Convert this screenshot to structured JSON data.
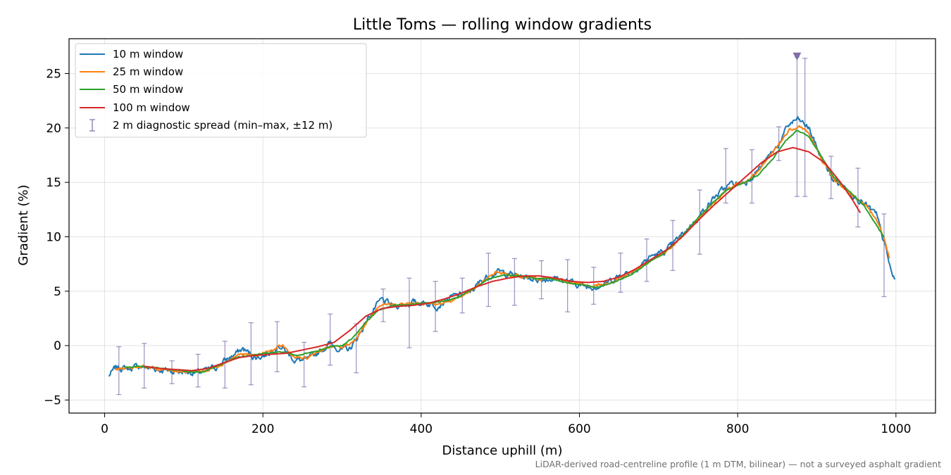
{
  "footnote": "LiDAR-derived road-centreline profile (1 m DTM, bilinear) — not a surveyed asphalt gradient",
  "chart_data": {
    "type": "line",
    "title": "Little Toms — rolling window gradients",
    "xlabel": "Distance uphill (m)",
    "ylabel": "Gradient (%)",
    "xlim": [
      -45,
      1050
    ],
    "ylim": [
      -6.2,
      28.2
    ],
    "xticks": [
      0,
      200,
      400,
      600,
      800,
      1000
    ],
    "yticks": [
      -5,
      0,
      5,
      10,
      15,
      20,
      25
    ],
    "grid": true,
    "legend_position": "top-left",
    "series": [
      {
        "name": "10 m window",
        "color": "#1f77b4",
        "x_start": 5,
        "x_end": 999,
        "points": [
          [
            5,
            -2.8
          ],
          [
            15,
            -2.0
          ],
          [
            30,
            -2.1
          ],
          [
            45,
            -1.9
          ],
          [
            60,
            -2.1
          ],
          [
            80,
            -2.3
          ],
          [
            100,
            -2.4
          ],
          [
            120,
            -2.5
          ],
          [
            140,
            -2.0
          ],
          [
            160,
            -1.0
          ],
          [
            175,
            -0.3
          ],
          [
            190,
            -1.1
          ],
          [
            205,
            -0.8
          ],
          [
            220,
            0.1
          ],
          [
            240,
            -1.3
          ],
          [
            255,
            -1.4
          ],
          [
            270,
            -0.6
          ],
          [
            285,
            0.2
          ],
          [
            300,
            -0.4
          ],
          [
            310,
            -0.3
          ],
          [
            320,
            0.8
          ],
          [
            335,
            2.8
          ],
          [
            350,
            4.2
          ],
          [
            365,
            3.6
          ],
          [
            385,
            3.9
          ],
          [
            400,
            4.0
          ],
          [
            420,
            3.7
          ],
          [
            440,
            4.5
          ],
          [
            460,
            4.8
          ],
          [
            480,
            6.2
          ],
          [
            495,
            6.8
          ],
          [
            510,
            6.6
          ],
          [
            530,
            6.3
          ],
          [
            550,
            6.1
          ],
          [
            570,
            6.2
          ],
          [
            590,
            5.8
          ],
          [
            610,
            5.4
          ],
          [
            630,
            5.6
          ],
          [
            650,
            6.4
          ],
          [
            670,
            7.0
          ],
          [
            690,
            8.2
          ],
          [
            710,
            8.7
          ],
          [
            730,
            10.2
          ],
          [
            750,
            11.8
          ],
          [
            770,
            13.6
          ],
          [
            790,
            14.8
          ],
          [
            810,
            15.0
          ],
          [
            830,
            16.5
          ],
          [
            850,
            18.3
          ],
          [
            865,
            20.3
          ],
          [
            875,
            20.8
          ],
          [
            890,
            20.0
          ],
          [
            905,
            17.3
          ],
          [
            920,
            15.3
          ],
          [
            940,
            14.3
          ],
          [
            960,
            13.0
          ],
          [
            975,
            12.0
          ],
          [
            985,
            9.5
          ],
          [
            995,
            6.5
          ],
          [
            999,
            6.0
          ]
        ]
      },
      {
        "name": "25 m window",
        "color": "#ff7f0e",
        "x_start": 13,
        "x_end": 992,
        "points": [
          [
            13,
            -2.2
          ],
          [
            30,
            -2.0
          ],
          [
            50,
            -1.9
          ],
          [
            70,
            -2.2
          ],
          [
            90,
            -2.3
          ],
          [
            110,
            -2.4
          ],
          [
            130,
            -2.3
          ],
          [
            150,
            -1.6
          ],
          [
            170,
            -0.8
          ],
          [
            190,
            -0.9
          ],
          [
            210,
            -0.5
          ],
          [
            225,
            0.0
          ],
          [
            240,
            -1.1
          ],
          [
            255,
            -1.2
          ],
          [
            270,
            -0.5
          ],
          [
            285,
            -0.1
          ],
          [
            300,
            -0.2
          ],
          [
            315,
            0.4
          ],
          [
            330,
            2.0
          ],
          [
            345,
            3.4
          ],
          [
            360,
            3.8
          ],
          [
            380,
            3.8
          ],
          [
            400,
            3.9
          ],
          [
            420,
            3.8
          ],
          [
            440,
            4.2
          ],
          [
            460,
            4.9
          ],
          [
            480,
            5.9
          ],
          [
            495,
            6.8
          ],
          [
            510,
            6.5
          ],
          [
            530,
            6.3
          ],
          [
            550,
            6.2
          ],
          [
            570,
            6.1
          ],
          [
            590,
            5.8
          ],
          [
            610,
            5.5
          ],
          [
            630,
            5.6
          ],
          [
            650,
            6.2
          ],
          [
            670,
            6.9
          ],
          [
            690,
            7.8
          ],
          [
            710,
            8.6
          ],
          [
            730,
            10.0
          ],
          [
            750,
            11.6
          ],
          [
            770,
            13.2
          ],
          [
            790,
            14.6
          ],
          [
            810,
            15.0
          ],
          [
            830,
            16.3
          ],
          [
            850,
            18.3
          ],
          [
            865,
            19.8
          ],
          [
            878,
            20.2
          ],
          [
            890,
            19.5
          ],
          [
            905,
            17.3
          ],
          [
            920,
            15.4
          ],
          [
            940,
            14.1
          ],
          [
            960,
            13.0
          ],
          [
            975,
            11.8
          ],
          [
            985,
            9.8
          ],
          [
            992,
            8.0
          ]
        ]
      },
      {
        "name": "50 m window",
        "color": "#2ca02c",
        "x_start": 25,
        "x_end": 985,
        "points": [
          [
            25,
            -2.0
          ],
          [
            45,
            -1.9
          ],
          [
            65,
            -2.0
          ],
          [
            85,
            -2.2
          ],
          [
            105,
            -2.4
          ],
          [
            125,
            -2.4
          ],
          [
            145,
            -1.8
          ],
          [
            165,
            -1.1
          ],
          [
            185,
            -0.9
          ],
          [
            205,
            -0.7
          ],
          [
            225,
            -0.6
          ],
          [
            245,
            -0.9
          ],
          [
            265,
            -0.6
          ],
          [
            285,
            -0.1
          ],
          [
            300,
            0.0
          ],
          [
            315,
            0.8
          ],
          [
            330,
            2.2
          ],
          [
            345,
            3.2
          ],
          [
            365,
            3.7
          ],
          [
            385,
            3.8
          ],
          [
            405,
            3.9
          ],
          [
            425,
            4.0
          ],
          [
            445,
            4.4
          ],
          [
            465,
            5.2
          ],
          [
            485,
            6.1
          ],
          [
            505,
            6.5
          ],
          [
            525,
            6.4
          ],
          [
            545,
            6.2
          ],
          [
            565,
            6.1
          ],
          [
            585,
            5.8
          ],
          [
            605,
            5.5
          ],
          [
            625,
            5.4
          ],
          [
            645,
            5.9
          ],
          [
            665,
            6.5
          ],
          [
            685,
            7.5
          ],
          [
            705,
            8.4
          ],
          [
            725,
            9.7
          ],
          [
            745,
            11.3
          ],
          [
            765,
            12.9
          ],
          [
            785,
            14.2
          ],
          [
            805,
            14.9
          ],
          [
            825,
            15.6
          ],
          [
            845,
            17.2
          ],
          [
            860,
            18.8
          ],
          [
            875,
            19.8
          ],
          [
            890,
            19.2
          ],
          [
            905,
            17.5
          ],
          [
            920,
            15.6
          ],
          [
            940,
            14.3
          ],
          [
            960,
            12.8
          ],
          [
            975,
            11.1
          ],
          [
            985,
            10.0
          ]
        ]
      },
      {
        "name": "100 m window",
        "color": "#d62728",
        "x_start": 50,
        "x_end": 955,
        "points": [
          [
            50,
            -1.9
          ],
          [
            70,
            -2.1
          ],
          [
            90,
            -2.2
          ],
          [
            110,
            -2.3
          ],
          [
            130,
            -2.1
          ],
          [
            150,
            -1.6
          ],
          [
            170,
            -1.1
          ],
          [
            190,
            -0.9
          ],
          [
            210,
            -0.8
          ],
          [
            230,
            -0.7
          ],
          [
            250,
            -0.4
          ],
          [
            270,
            -0.1
          ],
          [
            290,
            0.3
          ],
          [
            310,
            1.4
          ],
          [
            330,
            2.7
          ],
          [
            350,
            3.4
          ],
          [
            370,
            3.6
          ],
          [
            390,
            3.7
          ],
          [
            410,
            3.9
          ],
          [
            430,
            4.3
          ],
          [
            450,
            4.8
          ],
          [
            470,
            5.4
          ],
          [
            490,
            5.9
          ],
          [
            510,
            6.2
          ],
          [
            530,
            6.4
          ],
          [
            550,
            6.4
          ],
          [
            570,
            6.2
          ],
          [
            590,
            5.9
          ],
          [
            610,
            5.8
          ],
          [
            630,
            5.9
          ],
          [
            650,
            6.3
          ],
          [
            670,
            7.0
          ],
          [
            690,
            7.9
          ],
          [
            710,
            8.8
          ],
          [
            730,
            10.0
          ],
          [
            750,
            11.5
          ],
          [
            770,
            12.9
          ],
          [
            790,
            14.2
          ],
          [
            810,
            15.5
          ],
          [
            830,
            16.8
          ],
          [
            850,
            17.8
          ],
          [
            870,
            18.2
          ],
          [
            890,
            17.8
          ],
          [
            910,
            16.8
          ],
          [
            930,
            15.0
          ],
          [
            945,
            13.4
          ],
          [
            955,
            12.2
          ]
        ]
      }
    ],
    "error_bars": {
      "name": "2 m diagnostic spread (min–max, ±12 m)",
      "color": "#7f7ab0",
      "points": [
        {
          "x": 18,
          "low": -4.5,
          "high": -0.1
        },
        {
          "x": 50,
          "low": -3.9,
          "high": 0.2
        },
        {
          "x": 85,
          "low": -3.5,
          "high": -1.4
        },
        {
          "x": 118,
          "low": -3.8,
          "high": -0.8
        },
        {
          "x": 152,
          "low": -3.9,
          "high": 0.4
        },
        {
          "x": 185,
          "low": -3.6,
          "high": 2.1
        },
        {
          "x": 218,
          "low": -2.4,
          "high": 2.2
        },
        {
          "x": 252,
          "low": -3.8,
          "high": 0.3
        },
        {
          "x": 285,
          "low": -1.8,
          "high": 2.9
        },
        {
          "x": 318,
          "low": -2.5,
          "high": 2.0
        },
        {
          "x": 352,
          "low": 2.2,
          "high": 5.2
        },
        {
          "x": 385,
          "low": -0.2,
          "high": 6.2
        },
        {
          "x": 418,
          "low": 1.3,
          "high": 5.9
        },
        {
          "x": 452,
          "low": 3.0,
          "high": 6.2
        },
        {
          "x": 485,
          "low": 3.6,
          "high": 8.5
        },
        {
          "x": 518,
          "low": 3.7,
          "high": 8.0
        },
        {
          "x": 552,
          "low": 4.3,
          "high": 7.8
        },
        {
          "x": 585,
          "low": 3.1,
          "high": 7.9
        },
        {
          "x": 618,
          "low": 3.8,
          "high": 7.2
        },
        {
          "x": 652,
          "low": 4.9,
          "high": 8.5
        },
        {
          "x": 685,
          "low": 5.9,
          "high": 9.8
        },
        {
          "x": 718,
          "low": 6.9,
          "high": 11.5
        },
        {
          "x": 752,
          "low": 8.4,
          "high": 14.3
        },
        {
          "x": 785,
          "low": 13.1,
          "high": 18.1
        },
        {
          "x": 818,
          "low": 13.1,
          "high": 18.0
        },
        {
          "x": 852,
          "low": 17.0,
          "high": 20.1
        },
        {
          "x": 875,
          "low": 13.7,
          "high": 26.5
        },
        {
          "x": 885,
          "low": 13.7,
          "high": 26.4
        },
        {
          "x": 918,
          "low": 13.5,
          "high": 17.4
        },
        {
          "x": 952,
          "low": 10.9,
          "high": 16.3
        },
        {
          "x": 985,
          "low": 4.5,
          "high": 12.1
        }
      ]
    },
    "peak_marker": {
      "x": 875,
      "y": 26.6,
      "color": "#7f6ea8",
      "shape": "triangle-down"
    }
  }
}
